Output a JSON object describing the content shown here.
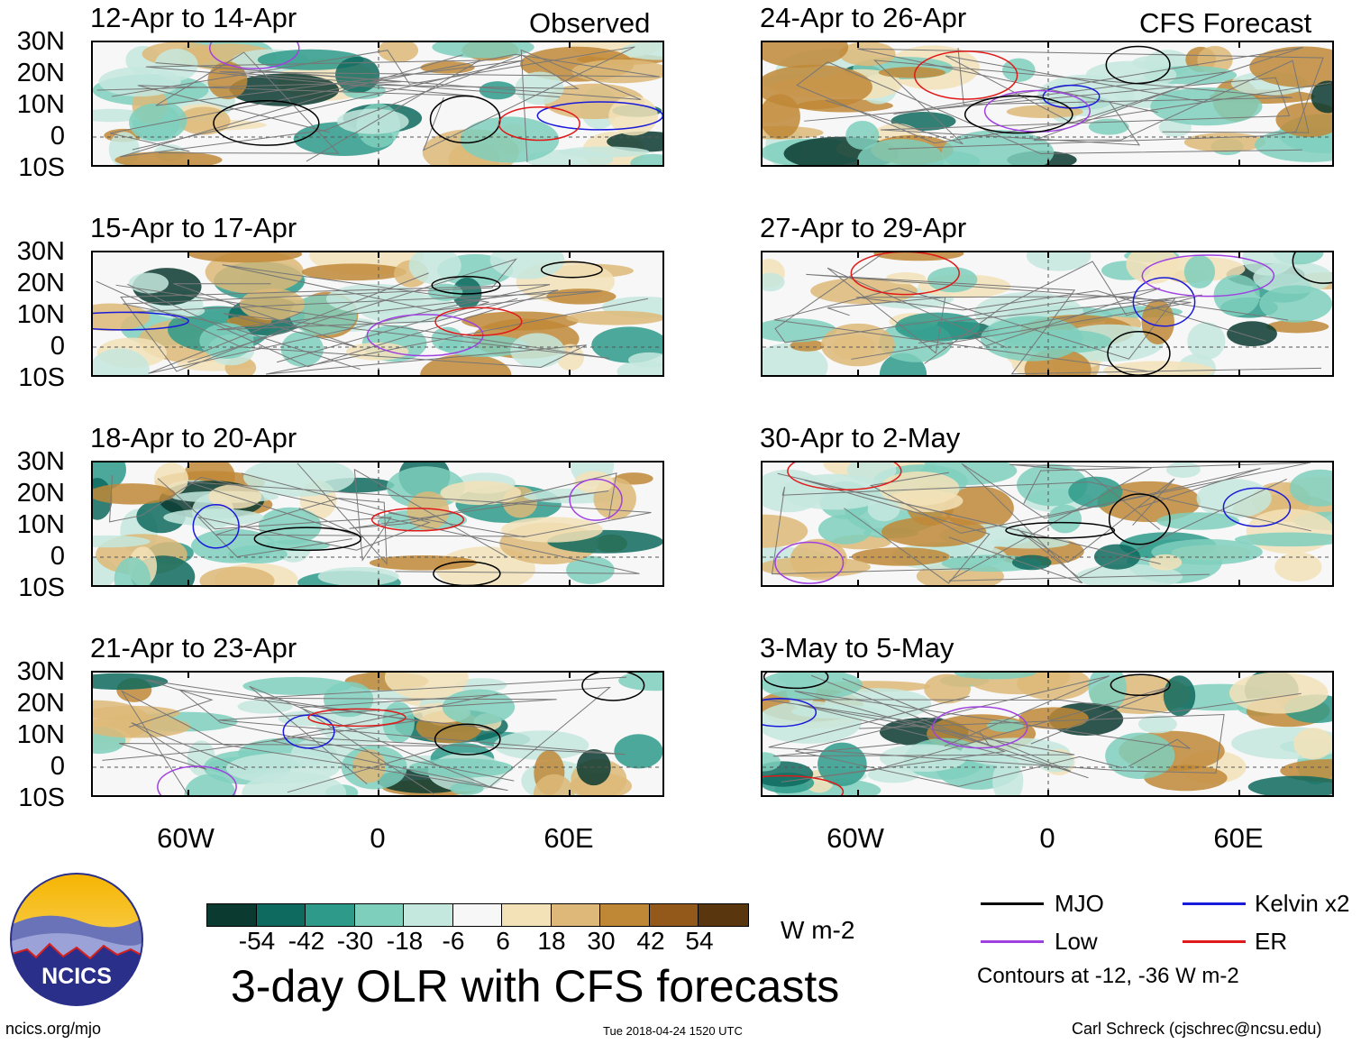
{
  "headers": {
    "left": "Observed",
    "right": "CFS Forecast"
  },
  "observed_panels": [
    {
      "title": "12-Apr to 14-Apr"
    },
    {
      "title": "15-Apr to 17-Apr"
    },
    {
      "title": "18-Apr to 20-Apr"
    },
    {
      "title": "21-Apr to 23-Apr"
    }
  ],
  "forecast_panels": [
    {
      "title": "24-Apr to 26-Apr"
    },
    {
      "title": "27-Apr to 29-Apr"
    },
    {
      "title": "30-Apr to 2-May"
    },
    {
      "title": "3-May to 5-May"
    }
  ],
  "lat_ticks": [
    "30N",
    "20N",
    "10N",
    "0",
    "10S"
  ],
  "lon_ticks": [
    "60W",
    "0",
    "60E"
  ],
  "colorbar": {
    "colors": [
      "#0b3a30",
      "#0e6a5e",
      "#2e9a8a",
      "#7fcfbd",
      "#c4e8de",
      "#f7f7f7",
      "#f3e2b8",
      "#ddb878",
      "#bf8837",
      "#93591a",
      "#5a360f"
    ],
    "labels": [
      "-54",
      "-42",
      "-30",
      "-18",
      "-6",
      "6",
      "18",
      "30",
      "42",
      "54"
    ],
    "units": "W m-2"
  },
  "title": "3-day OLR with CFS forecasts",
  "legend": {
    "items": [
      {
        "label": "MJO",
        "color": "#000000"
      },
      {
        "label": "Kelvin x2",
        "color": "#1a1adb"
      },
      {
        "label": "Low",
        "color": "#a040e0"
      },
      {
        "label": "ER",
        "color": "#e01a1a"
      }
    ],
    "note": "Contours at -12, -36 W m-2"
  },
  "logo": {
    "text": "NCICS"
  },
  "footer": {
    "website": "ncics.org/mjo",
    "timestamp": "Tue 2018-04-24 1520 UTC",
    "credit": "Carl Schreck (cjschrec@ncsu.edu)"
  }
}
